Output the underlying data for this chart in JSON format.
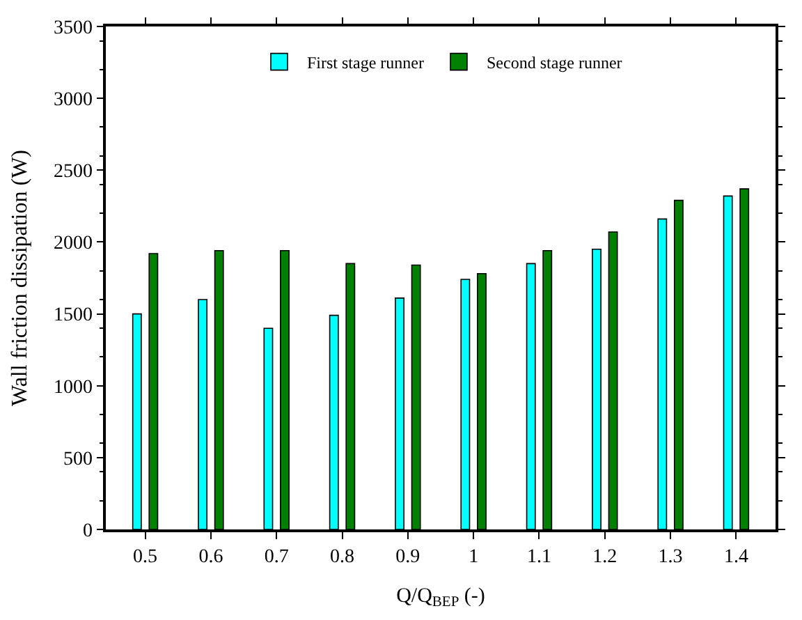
{
  "chart_data": {
    "type": "bar",
    "xlabel": "Q/Q$_{BEP}$ (-)",
    "ylabel": "Wall friction dissipation (W)",
    "categories": [
      "0.5",
      "0.6",
      "0.7",
      "0.8",
      "0.9",
      "1",
      "1.1",
      "1.2",
      "1.3",
      "1.4"
    ],
    "series": [
      {
        "name": "First stage runner",
        "color": "#00ffff",
        "values": [
          1500,
          1600,
          1400,
          1490,
          1610,
          1740,
          1850,
          1950,
          2160,
          2320
        ]
      },
      {
        "name": "Second stage runner",
        "color": "#008000",
        "values": [
          1920,
          1940,
          1940,
          1850,
          1840,
          1780,
          1940,
          2070,
          2290,
          2370
        ]
      }
    ],
    "ylim": [
      0,
      3500
    ],
    "yticks": [
      0,
      500,
      1000,
      1500,
      2000,
      2500,
      3000,
      3500
    ],
    "legend": "top"
  }
}
